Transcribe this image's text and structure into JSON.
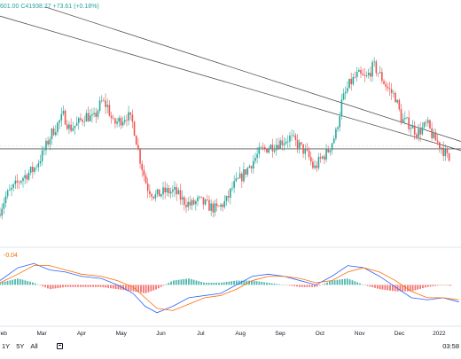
{
  "legend": {
    "ohlc_text": "601.00 C41938.27 +73.61 (+0.18%)",
    "macd_value": "-0.04"
  },
  "range_buttons": [
    "1Y",
    "5Y",
    "All"
  ],
  "clock": "03:58",
  "colors": {
    "up": "#26a69a",
    "down": "#ef5350",
    "macd_line": "#2962ff",
    "signal_line": "#ff6d00",
    "hist_up": "#26a69a",
    "hist_down": "#ef5350",
    "trendline": "#555555"
  },
  "chart_data": {
    "type": "candlestick",
    "x_tick_labels": [
      "Feb",
      "Mar",
      "Apr",
      "May",
      "Jun",
      "Jul",
      "Aug",
      "Sep",
      "Oct",
      "Nov",
      "Dec",
      "2022"
    ],
    "x_tick_months": [
      1,
      2,
      3,
      4,
      5,
      6,
      7,
      8,
      9,
      10,
      11,
      12
    ],
    "month_range": [
      0.95,
      12.55
    ],
    "price_range": [
      24000,
      76000
    ],
    "anchors": [
      [
        0.95,
        30000
      ],
      [
        1.15,
        34000
      ],
      [
        1.55,
        38000
      ],
      [
        1.85,
        40000
      ],
      [
        2.05,
        43000
      ],
      [
        2.3,
        48000
      ],
      [
        2.6,
        52000
      ],
      [
        2.75,
        49000
      ],
      [
        2.95,
        50000
      ],
      [
        3.15,
        52000
      ],
      [
        3.35,
        51000
      ],
      [
        3.55,
        55000
      ],
      [
        3.7,
        54000
      ],
      [
        3.85,
        50000
      ],
      [
        4.05,
        51000
      ],
      [
        4.2,
        52000
      ],
      [
        4.35,
        50000
      ],
      [
        4.5,
        43000
      ],
      [
        4.7,
        36000
      ],
      [
        4.9,
        34000
      ],
      [
        5.15,
        35000
      ],
      [
        5.4,
        35000
      ],
      [
        5.6,
        33000
      ],
      [
        5.8,
        32000
      ],
      [
        6.0,
        33000
      ],
      [
        6.2,
        32000
      ],
      [
        6.45,
        31000
      ],
      [
        6.7,
        33000
      ],
      [
        6.85,
        36000
      ],
      [
        7.05,
        38000
      ],
      [
        7.3,
        41000
      ],
      [
        7.55,
        44000
      ],
      [
        7.8,
        45000
      ],
      [
        8.05,
        46000
      ],
      [
        8.3,
        47000
      ],
      [
        8.55,
        45000
      ],
      [
        8.75,
        43000
      ],
      [
        8.9,
        40000
      ],
      [
        9.05,
        42000
      ],
      [
        9.25,
        44000
      ],
      [
        9.45,
        48000
      ],
      [
        9.6,
        55000
      ],
      [
        9.8,
        59000
      ],
      [
        10.0,
        61000
      ],
      [
        10.2,
        60000
      ],
      [
        10.4,
        63000
      ],
      [
        10.55,
        61000
      ],
      [
        10.75,
        58000
      ],
      [
        10.95,
        56000
      ],
      [
        11.1,
        51000
      ],
      [
        11.3,
        50000
      ],
      [
        11.5,
        48000
      ],
      [
        11.75,
        50000
      ],
      [
        11.9,
        47000
      ],
      [
        12.1,
        45000
      ],
      [
        12.3,
        41938
      ]
    ],
    "macd_anchors": [
      [
        0.95,
        0.2,
        0.1
      ],
      [
        1.4,
        0.8,
        0.5
      ],
      [
        1.8,
        1.0,
        0.9
      ],
      [
        2.2,
        0.7,
        0.9
      ],
      [
        2.6,
        0.6,
        0.7
      ],
      [
        3.0,
        0.4,
        0.5
      ],
      [
        3.5,
        0.3,
        0.4
      ],
      [
        3.9,
        0.0,
        0.2
      ],
      [
        4.3,
        -0.4,
        -0.1
      ],
      [
        4.6,
        -1.0,
        -0.6
      ],
      [
        4.9,
        -1.3,
        -1.1
      ],
      [
        5.3,
        -1.0,
        -1.2
      ],
      [
        5.7,
        -0.6,
        -0.9
      ],
      [
        6.1,
        -0.5,
        -0.6
      ],
      [
        6.5,
        -0.4,
        -0.5
      ],
      [
        6.9,
        0.0,
        -0.2
      ],
      [
        7.3,
        0.4,
        0.2
      ],
      [
        7.7,
        0.5,
        0.4
      ],
      [
        8.1,
        0.4,
        0.4
      ],
      [
        8.5,
        0.2,
        0.3
      ],
      [
        8.9,
        0.0,
        0.1
      ],
      [
        9.3,
        0.4,
        0.2
      ],
      [
        9.7,
        0.9,
        0.6
      ],
      [
        10.1,
        0.8,
        0.8
      ],
      [
        10.5,
        0.4,
        0.6
      ],
      [
        10.9,
        -0.1,
        0.2
      ],
      [
        11.3,
        -0.6,
        -0.3
      ],
      [
        11.7,
        -0.7,
        -0.6
      ],
      [
        12.1,
        -0.6,
        -0.6
      ],
      [
        12.5,
        -0.8,
        -0.7
      ]
    ],
    "macd_range": [
      -1.6,
      1.3
    ],
    "trendlines": [
      [
        [
          2.1,
          76000
        ],
        [
          12.6,
          46000
        ]
      ],
      [
        [
          0.95,
          74000
        ],
        [
          12.6,
          44000
        ]
      ]
    ],
    "horizontal_level": 44500
  }
}
